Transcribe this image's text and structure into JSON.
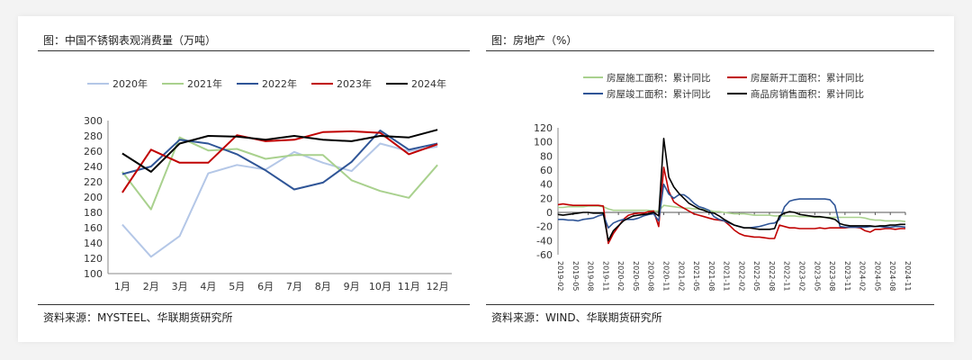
{
  "left": {
    "title": "图：中国不锈钢表观消费量（万吨）",
    "source": "资料来源：MYSTEEL、华联期货研究所",
    "chart_data": {
      "type": "line",
      "categories": [
        "1月",
        "2月",
        "3月",
        "4月",
        "5月",
        "6月",
        "7月",
        "8月",
        "9月",
        "10月",
        "11月",
        "12月"
      ],
      "ylim": [
        100,
        300
      ],
      "yticks": [
        100,
        120,
        140,
        160,
        180,
        200,
        220,
        240,
        260,
        280,
        300
      ],
      "grid": false,
      "legend": "top",
      "series": [
        {
          "name": "2020年",
          "color": "#b4c7e7",
          "values": [
            164,
            122,
            149,
            231,
            242,
            236,
            259,
            245,
            234,
            270,
            260,
            266
          ]
        },
        {
          "name": "2021年",
          "color": "#a9d18e",
          "values": [
            233,
            184,
            278,
            261,
            263,
            250,
            255,
            255,
            222,
            208,
            199,
            242
          ]
        },
        {
          "name": "2022年",
          "color": "#2f5597",
          "values": [
            230,
            240,
            275,
            270,
            256,
            235,
            210,
            219,
            246,
            287,
            262,
            270
          ]
        },
        {
          "name": "2023年",
          "color": "#c00000",
          "values": [
            206,
            262,
            245,
            245,
            281,
            273,
            275,
            285,
            286,
            284,
            256,
            269
          ]
        },
        {
          "name": "2024年",
          "color": "#000000",
          "values": [
            257,
            233,
            270,
            280,
            279,
            275,
            280,
            275,
            273,
            280,
            278,
            288
          ]
        }
      ]
    }
  },
  "right": {
    "title": "图：房地产（%）",
    "source": "资料来源：WIND、华联期货研究所",
    "chart_data": {
      "type": "line",
      "ylim": [
        -60,
        120
      ],
      "yticks": [
        -60,
        -40,
        -20,
        0,
        20,
        40,
        60,
        80,
        100,
        120
      ],
      "legend": "top",
      "grid": false,
      "x_labels": [
        "2019-02",
        "2019-05",
        "2019-08",
        "2019-11",
        "2020-02",
        "2020-05",
        "2020-08",
        "2020-11",
        "2021-02",
        "2021-05",
        "2021-08",
        "2021-11",
        "2022-02",
        "2022-05",
        "2022-08",
        "2022-11",
        "2023-02",
        "2023-05",
        "2023-08",
        "2023-11",
        "2024-02",
        "2024-05",
        "2024-08",
        "2024-11"
      ],
      "x": [
        0,
        1,
        2,
        3,
        4,
        5,
        6,
        7,
        8,
        9,
        10,
        11,
        12,
        13,
        14,
        15,
        16,
        17,
        18,
        19,
        20,
        21,
        22,
        23,
        24,
        25,
        26,
        27,
        28,
        29,
        30,
        31,
        32,
        33,
        34,
        35,
        36,
        37,
        38,
        39,
        40,
        41,
        42,
        43,
        44,
        45,
        46,
        47,
        48,
        49,
        50,
        51,
        52,
        53,
        54,
        55,
        56,
        57,
        58,
        59,
        60,
        61,
        62,
        63,
        64,
        65,
        66,
        67,
        68,
        69
      ],
      "series": [
        {
          "name": "房屋施工面积：累计同比",
          "color": "#a9d18e",
          "values": [
            7,
            7,
            8,
            8,
            8,
            8,
            9,
            9,
            9,
            8,
            5,
            3,
            3,
            3,
            3,
            3,
            3,
            3,
            3,
            2,
            2,
            10,
            9,
            8,
            7,
            6,
            6,
            5,
            5,
            4,
            3,
            1,
            1,
            0,
            -1,
            -2,
            -2,
            -2,
            -3,
            -4,
            -4,
            -4,
            -4,
            -5,
            -5,
            -5,
            -5,
            -5,
            -6,
            -6,
            -6,
            -7,
            -7,
            -7,
            -7,
            -7,
            -7,
            -7,
            -7,
            -7,
            -7,
            -8,
            -10,
            -11,
            -11,
            -12,
            -12,
            -12,
            -12,
            -13
          ]
        },
        {
          "name": "房屋新开工面积：累计同比",
          "color": "#c00000",
          "values": [
            11,
            12,
            11,
            10,
            10,
            10,
            10,
            10,
            10,
            9,
            -44,
            -30,
            -20,
            -10,
            -4,
            -2,
            -1,
            -1,
            1,
            2,
            -20,
            64,
            30,
            15,
            10,
            6,
            2,
            -2,
            -4,
            -6,
            -8,
            -10,
            -11,
            -12,
            -18,
            -25,
            -30,
            -33,
            -34,
            -35,
            -35,
            -36,
            -37,
            -37,
            -18,
            -20,
            -22,
            -22,
            -23,
            -23,
            -23,
            -23,
            -22,
            -23,
            -22,
            -22,
            -22,
            -22,
            -21,
            -21,
            -22,
            -26,
            -28,
            -24,
            -24,
            -23,
            -23,
            -24,
            -23,
            -23
          ]
        },
        {
          "name": "房屋竣工面积：累计同比",
          "color": "#2f5597",
          "values": [
            -10,
            -10,
            -11,
            -11,
            -12,
            -10,
            -9,
            -8,
            -5,
            -3,
            -22,
            -15,
            -12,
            -10,
            -10,
            -10,
            -8,
            -5,
            -3,
            -2,
            -12,
            40,
            26,
            20,
            25,
            25,
            20,
            13,
            8,
            6,
            3,
            -6,
            -10,
            -12,
            -15,
            -18,
            -20,
            -22,
            -22,
            -21,
            -20,
            -18,
            -16,
            -15,
            -10,
            8,
            16,
            18,
            19,
            19,
            19,
            19,
            19,
            19,
            18,
            10,
            -20,
            -21,
            -21,
            -21,
            -21,
            -21,
            -20,
            -20,
            -20,
            -21,
            -21,
            -20,
            -20,
            -21
          ]
        },
        {
          "name": "商品房销售面积：累计同比",
          "color": "#000000",
          "values": [
            -3,
            -4,
            -3,
            -2,
            -1,
            0,
            0,
            -1,
            -1,
            -1,
            -40,
            -26,
            -19,
            -12,
            -8,
            -5,
            -4,
            -3,
            -2,
            0,
            -5,
            105,
            50,
            36,
            27,
            20,
            13,
            9,
            5,
            3,
            0,
            -1,
            -5,
            -10,
            -14,
            -18,
            -20,
            -22,
            -22,
            -23,
            -24,
            -24,
            -24,
            -23,
            -5,
            -1,
            1,
            0,
            -3,
            -4,
            -5,
            -6,
            -6,
            -7,
            -8,
            -10,
            -16,
            -18,
            -19,
            -19,
            -19,
            -19,
            -19,
            -20,
            -19,
            -19,
            -18,
            -18,
            -17,
            -17
          ]
        }
      ]
    }
  }
}
